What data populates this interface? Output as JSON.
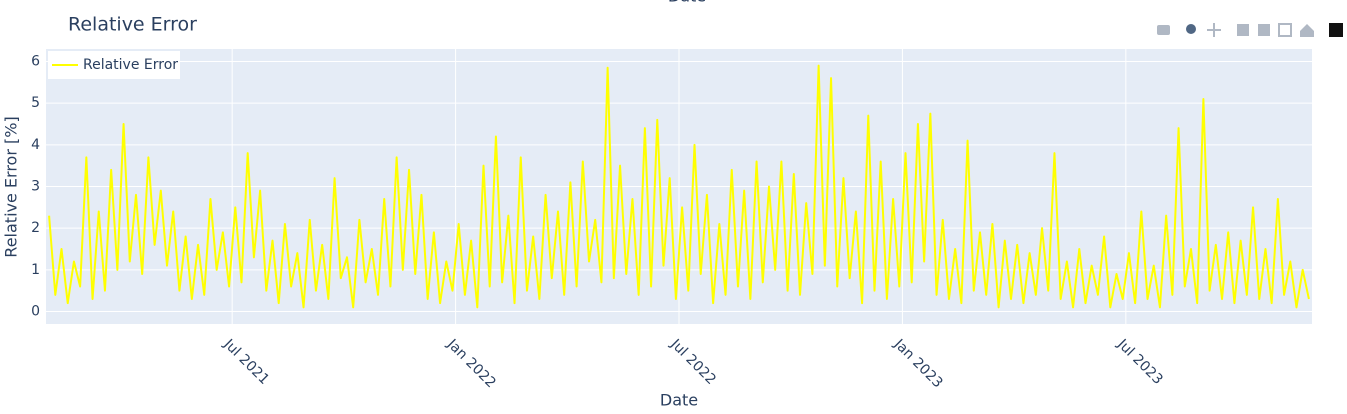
{
  "chart_data": {
    "type": "line",
    "title": "Relative Error",
    "xlabel": "Date",
    "ylabel": "Relative Error [%]",
    "xlim": [
      "2021-02",
      "2023-12"
    ],
    "xticks": [
      {
        "value": "2021-07",
        "label": "Jul 2021"
      },
      {
        "value": "2022-01",
        "label": "Jan 2022"
      },
      {
        "value": "2022-07",
        "label": "Jul 2022"
      },
      {
        "value": "2023-01",
        "label": "Jan 2023"
      },
      {
        "value": "2023-07",
        "label": "Jul 2023"
      }
    ],
    "ylim": [
      -0.3,
      6.3
    ],
    "yticks": [
      0,
      1,
      2,
      3,
      4,
      5,
      6
    ],
    "grid": true,
    "legend": "top-left",
    "x": [
      "2021-02",
      "2021-02",
      "2021-02",
      "2021-02",
      "2021-02",
      "2021-02",
      "2021-03",
      "2021-03",
      "2021-03",
      "2021-03",
      "2021-03",
      "2021-03",
      "2021-04",
      "2021-04",
      "2021-04",
      "2021-04",
      "2021-04",
      "2021-04",
      "2021-05",
      "2021-05",
      "2021-05",
      "2021-05",
      "2021-05",
      "2021-05",
      "2021-06",
      "2021-06",
      "2021-06",
      "2021-06",
      "2021-06",
      "2021-06",
      "2021-07",
      "2021-07",
      "2021-07",
      "2021-07",
      "2021-07",
      "2021-07",
      "2021-08",
      "2021-08",
      "2021-08",
      "2021-08",
      "2021-08",
      "2021-08",
      "2021-09",
      "2021-09",
      "2021-09",
      "2021-09",
      "2021-09",
      "2021-09",
      "2021-10",
      "2021-10",
      "2021-10",
      "2021-10",
      "2021-10",
      "2021-10",
      "2021-11",
      "2021-11",
      "2021-11",
      "2021-11",
      "2021-11",
      "2021-11",
      "2021-12",
      "2021-12",
      "2021-12",
      "2021-12",
      "2021-12",
      "2021-12",
      "2022-01",
      "2022-01",
      "2022-01",
      "2022-01",
      "2022-01",
      "2022-01",
      "2022-02",
      "2022-02",
      "2022-02",
      "2022-02",
      "2022-02",
      "2022-02",
      "2022-03",
      "2022-03",
      "2022-03",
      "2022-03",
      "2022-03",
      "2022-03",
      "2022-04",
      "2022-04",
      "2022-04",
      "2022-04",
      "2022-04",
      "2022-04",
      "2022-05",
      "2022-05",
      "2022-05",
      "2022-05",
      "2022-05",
      "2022-05",
      "2022-06",
      "2022-06",
      "2022-06",
      "2022-06",
      "2022-06",
      "2022-06",
      "2022-07",
      "2022-07",
      "2022-07",
      "2022-07",
      "2022-07",
      "2022-07",
      "2022-08",
      "2022-08",
      "2022-08",
      "2022-08",
      "2022-08",
      "2022-08",
      "2022-09",
      "2022-09",
      "2022-09",
      "2022-09",
      "2022-09",
      "2022-09",
      "2022-10",
      "2022-10",
      "2022-10",
      "2022-10",
      "2022-10",
      "2022-10",
      "2022-11",
      "2022-11",
      "2022-11",
      "2022-11",
      "2022-11",
      "2022-11",
      "2022-12",
      "2022-12",
      "2022-12",
      "2022-12",
      "2022-12",
      "2022-12",
      "2023-01",
      "2023-01",
      "2023-01",
      "2023-01",
      "2023-01",
      "2023-01",
      "2023-02",
      "2023-02",
      "2023-02",
      "2023-02",
      "2023-02",
      "2023-02",
      "2023-03",
      "2023-03",
      "2023-03",
      "2023-03",
      "2023-03",
      "2023-03",
      "2023-04",
      "2023-04",
      "2023-04",
      "2023-04",
      "2023-04",
      "2023-04",
      "2023-05",
      "2023-05",
      "2023-05",
      "2023-05",
      "2023-05",
      "2023-05",
      "2023-06",
      "2023-06",
      "2023-06",
      "2023-06",
      "2023-06",
      "2023-06",
      "2023-07",
      "2023-07",
      "2023-07",
      "2023-07",
      "2023-07",
      "2023-07",
      "2023-08",
      "2023-08",
      "2023-08",
      "2023-08",
      "2023-08",
      "2023-08",
      "2023-09",
      "2023-09",
      "2023-09",
      "2023-09",
      "2023-09",
      "2023-09",
      "2023-10",
      "2023-10",
      "2023-10",
      "2023-10",
      "2023-10",
      "2023-10",
      "2023-11",
      "2023-11",
      "2023-11",
      "2023-11",
      "2023-11",
      "2023-11"
    ],
    "series": [
      {
        "name": "Relative Error",
        "color": "#ffff00",
        "values": [
          2.3,
          0.4,
          1.5,
          0.2,
          1.2,
          0.6,
          3.7,
          0.3,
          2.4,
          0.5,
          3.4,
          1.0,
          4.5,
          1.2,
          2.8,
          0.9,
          3.7,
          1.6,
          2.9,
          1.1,
          2.4,
          0.5,
          1.8,
          0.3,
          1.6,
          0.4,
          2.7,
          1.0,
          1.9,
          0.6,
          2.5,
          0.7,
          3.8,
          1.3,
          2.9,
          0.5,
          1.7,
          0.2,
          2.1,
          0.6,
          1.4,
          0.1,
          2.2,
          0.5,
          1.6,
          0.3,
          3.2,
          0.8,
          1.3,
          0.1,
          2.2,
          0.7,
          1.5,
          0.4,
          2.7,
          0.6,
          3.7,
          1.0,
          3.4,
          0.9,
          2.8,
          0.3,
          1.9,
          0.2,
          1.2,
          0.5,
          2.1,
          0.4,
          1.7,
          0.1,
          3.5,
          0.6,
          4.2,
          0.7,
          2.3,
          0.2,
          3.7,
          0.5,
          1.8,
          0.3,
          2.8,
          0.8,
          2.4,
          0.4,
          3.1,
          0.6,
          3.6,
          1.2,
          2.2,
          0.7,
          5.85,
          0.8,
          3.5,
          0.9,
          2.7,
          0.4,
          4.4,
          0.6,
          4.6,
          1.1,
          3.2,
          0.3,
          2.5,
          0.5,
          4.0,
          0.9,
          2.8,
          0.2,
          2.1,
          0.4,
          3.4,
          0.6,
          2.9,
          0.3,
          3.6,
          0.7,
          3.0,
          1.0,
          3.6,
          0.5,
          3.3,
          0.4,
          2.6,
          0.9,
          5.9,
          1.1,
          5.6,
          0.6,
          3.2,
          0.8,
          2.4,
          0.2,
          4.7,
          0.5,
          3.6,
          0.3,
          2.7,
          0.6,
          3.8,
          0.7,
          4.5,
          1.2,
          4.75,
          0.4,
          2.2,
          0.3,
          1.5,
          0.2,
          4.1,
          0.5,
          1.9,
          0.4,
          2.1,
          0.1,
          1.7,
          0.3,
          1.6,
          0.2,
          1.4,
          0.4,
          2.0,
          0.5,
          3.8,
          0.3,
          1.2,
          0.1,
          1.5,
          0.2,
          1.1,
          0.4,
          1.8,
          0.1,
          0.9,
          0.3,
          1.4,
          0.2,
          2.4,
          0.3,
          1.1,
          0.1,
          2.3,
          0.4,
          4.4,
          0.6,
          1.5,
          0.2,
          5.1,
          0.5,
          1.6,
          0.3,
          1.9,
          0.2,
          1.7,
          0.4,
          2.5,
          0.3,
          1.5,
          0.2,
          2.7,
          0.4,
          1.2,
          0.1,
          1.0,
          0.3
        ]
      }
    ]
  }
}
